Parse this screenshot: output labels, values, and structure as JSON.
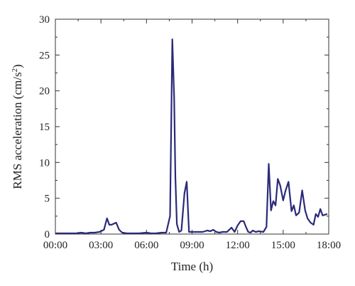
{
  "chart_data": {
    "type": "line",
    "xlabel": "Time (h)",
    "ylabel_main": "RMS acceleration (cm/s",
    "ylabel_sup": "2",
    "ylabel_tail": ")",
    "xlim": [
      0,
      18
    ],
    "ylim": [
      0,
      30
    ],
    "x_ticks": [
      {
        "value": 0,
        "label": "00:00"
      },
      {
        "value": 3,
        "label": "03:00"
      },
      {
        "value": 6,
        "label": "06:00"
      },
      {
        "value": 9,
        "label": "09:00"
      },
      {
        "value": 12,
        "label": "12:00"
      },
      {
        "value": 15,
        "label": "15:00"
      },
      {
        "value": 18,
        "label": "18:00"
      }
    ],
    "y_ticks": [
      {
        "value": 0,
        "label": "0"
      },
      {
        "value": 5,
        "label": "5"
      },
      {
        "value": 10,
        "label": "10"
      },
      {
        "value": 15,
        "label": "15"
      },
      {
        "value": 20,
        "label": "20"
      },
      {
        "value": 25,
        "label": "25"
      },
      {
        "value": 30,
        "label": "30"
      }
    ],
    "grid": false,
    "line_color": "#2a2a7a",
    "series": [
      {
        "x": [
          0,
          0.5,
          1.0,
          1.4,
          1.7,
          2.0,
          2.3,
          2.6,
          2.9,
          3.2,
          3.4,
          3.55,
          3.7,
          4.0,
          4.2,
          4.4,
          4.7,
          5.0,
          5.5,
          6.0,
          6.3,
          6.6,
          7.0,
          7.3,
          7.55,
          7.7,
          7.82,
          7.9,
          8.0,
          8.15,
          8.3,
          8.5,
          8.65,
          8.8,
          9.0,
          9.3,
          9.7,
          10.0,
          10.2,
          10.4,
          10.6,
          10.8,
          11.0,
          11.3,
          11.6,
          11.8,
          12.0,
          12.2,
          12.4,
          12.55,
          12.7,
          12.85,
          13.0,
          13.2,
          13.4,
          13.7,
          13.9,
          14.05,
          14.2,
          14.35,
          14.5,
          14.65,
          14.8,
          15.0,
          15.15,
          15.35,
          15.55,
          15.7,
          15.85,
          16.05,
          16.25,
          16.45,
          16.6,
          16.8,
          17.0,
          17.15,
          17.3,
          17.45,
          17.6,
          17.75,
          17.9
        ],
        "y": [
          0.1,
          0.1,
          0.1,
          0.1,
          0.2,
          0.1,
          0.2,
          0.2,
          0.3,
          0.6,
          2.2,
          1.3,
          1.3,
          1.6,
          0.6,
          0.2,
          0.1,
          0.1,
          0.1,
          0.2,
          0.1,
          0.1,
          0.2,
          0.2,
          2.5,
          27.2,
          19.0,
          8.0,
          1.4,
          0.3,
          0.5,
          5.7,
          7.3,
          0.3,
          0.3,
          0.3,
          0.3,
          0.5,
          0.4,
          0.6,
          0.3,
          0.2,
          0.3,
          0.3,
          0.9,
          0.3,
          1.2,
          1.8,
          1.8,
          1.0,
          0.3,
          0.2,
          0.5,
          0.3,
          0.4,
          0.3,
          1.0,
          9.8,
          3.3,
          4.6,
          4.0,
          7.7,
          6.8,
          4.7,
          6.0,
          7.3,
          3.2,
          4.0,
          2.6,
          3.0,
          6.1,
          3.3,
          2.2,
          1.6,
          1.3,
          2.8,
          2.4,
          3.5,
          2.6,
          2.7,
          2.8
        ]
      }
    ]
  }
}
